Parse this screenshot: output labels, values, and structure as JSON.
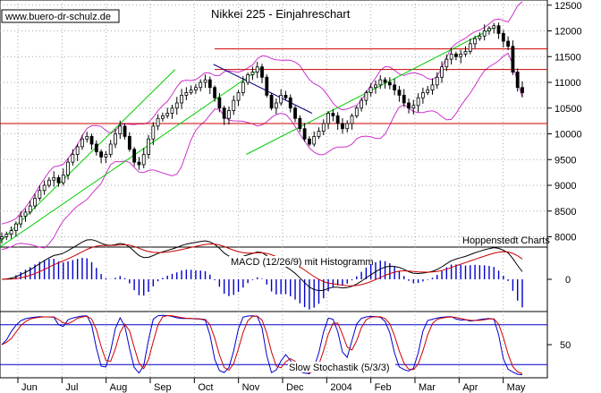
{
  "source_label": "www.buero-dr-schulz.de",
  "chart_data": {
    "type": "line",
    "title": "Nikkei 225 - Einjahreschart",
    "provider": "Hoppenstedt Charts",
    "months": [
      "Jun",
      "Jul",
      "Aug",
      "Sep",
      "Oct",
      "Nov",
      "Dec",
      "2004",
      "Feb",
      "Mar",
      "Apr",
      "May"
    ],
    "price_panel": {
      "ylim": [
        7800,
        12600
      ],
      "yticks": [
        8000,
        8500,
        9000,
        9500,
        10000,
        10500,
        11000,
        11500,
        12000,
        12500
      ],
      "ytick_labels": [
        "8000",
        "8500",
        "9000",
        "9500",
        "10000",
        "10500",
        "11000",
        "11500",
        "12000",
        "12500"
      ],
      "horizontal_resistance": [
        10200,
        11250,
        11650
      ],
      "trendlines": [
        {
          "name": "uptrend-steep",
          "color": "#00cc00",
          "x": [
            0,
            0.32
          ],
          "y": [
            7900,
            11250
          ]
        },
        {
          "name": "uptrend-long",
          "color": "#00cc00",
          "x": [
            0,
            0.48
          ],
          "y": [
            7800,
            11300
          ]
        },
        {
          "name": "uptrend-2",
          "color": "#00cc00",
          "x": [
            0.45,
            0.9
          ],
          "y": [
            9600,
            12050
          ]
        },
        {
          "name": "downtrend",
          "color": "#000080",
          "x": [
            0.39,
            0.57
          ],
          "y": [
            11350,
            10400
          ]
        }
      ],
      "close": [
        8000,
        8050,
        8120,
        8250,
        8400,
        8480,
        8600,
        8750,
        8900,
        9000,
        9100,
        9150,
        9050,
        9200,
        9450,
        9600,
        9750,
        9900,
        9950,
        9800,
        9650,
        9550,
        9600,
        9800,
        10000,
        10150,
        9950,
        9700,
        9450,
        9400,
        9600,
        9900,
        10150,
        10300,
        10350,
        10400,
        10500,
        10600,
        10750,
        10800,
        10850,
        10900,
        11000,
        11050,
        10900,
        10700,
        10500,
        10300,
        10450,
        10650,
        10800,
        11000,
        11150,
        11200,
        11300,
        11100,
        10750,
        10500,
        10600,
        10750,
        10700,
        10500,
        10300,
        10100,
        9900,
        9800,
        9950,
        10050,
        10200,
        10400,
        10350,
        10200,
        10100,
        10200,
        10350,
        10500,
        10650,
        10800,
        10900,
        10950,
        11050,
        11000,
        10950,
        10850,
        10750,
        10600,
        10500,
        10550,
        10700,
        10800,
        10850,
        10950,
        11100,
        11300,
        11450,
        11550,
        11500,
        11550,
        11600,
        11750,
        11850,
        11900,
        12000,
        12050,
        12100,
        11950,
        11800,
        11700,
        11200,
        10900,
        10800
      ]
    },
    "macd_panel": {
      "title": "MACD (12/26/9) mit Histogramm",
      "yticks": [
        0
      ],
      "ytick_labels": [
        "0"
      ],
      "ylim": [
        -220,
        220
      ]
    },
    "stoch_panel": {
      "title": "Slow Stochastik (5/3/3)",
      "ylim": [
        0,
        100
      ],
      "yticks": [
        50
      ],
      "ytick_labels": [
        "50"
      ],
      "levels": [
        20,
        80
      ]
    },
    "colors": {
      "bollinger": "#cc33cc",
      "trend": "#00cc00",
      "resistance": "#cc0000",
      "downtrend": "#000080",
      "macd": "#000000",
      "signal": "#cc0000",
      "histogram": "#0000cc",
      "stoch_k": "#0000cc",
      "stoch_d": "#cc0000",
      "stoch_level": "#0000cc",
      "grid": "#aaaaaa"
    }
  }
}
